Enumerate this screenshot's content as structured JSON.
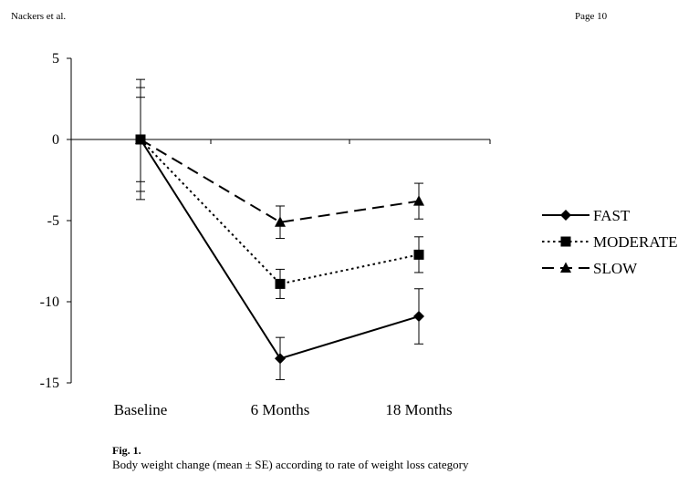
{
  "header": {
    "author": "Nackers et al.",
    "page": "Page 10"
  },
  "figure": {
    "label": "Fig. 1.",
    "caption": "Body weight change (mean ± SE) according to rate of weight loss category"
  },
  "chart_data": {
    "type": "line",
    "title": "",
    "xlabel": "",
    "ylabel": "",
    "categories": [
      "Baseline",
      "6 Months",
      "18 Months"
    ],
    "ylim": [
      -15,
      5
    ],
    "yticks": [
      5,
      0,
      -5,
      -10,
      -15
    ],
    "grid": false,
    "legend_position": "right",
    "series": [
      {
        "name": "FAST",
        "values": [
          0,
          -13.5,
          -10.9
        ],
        "se": [
          3.7,
          1.3,
          1.7
        ],
        "marker": "diamond",
        "dash": "solid",
        "color": "#000000"
      },
      {
        "name": "MODERATE",
        "values": [
          0,
          -8.9,
          -7.1
        ],
        "se": [
          3.2,
          0.9,
          1.1
        ],
        "marker": "square",
        "dash": "dotted",
        "color": "#000000"
      },
      {
        "name": "SLOW",
        "values": [
          0,
          -5.1,
          -3.8
        ],
        "se": [
          2.6,
          1.0,
          1.1
        ],
        "marker": "triangle",
        "dash": "dashed",
        "color": "#000000"
      }
    ]
  }
}
